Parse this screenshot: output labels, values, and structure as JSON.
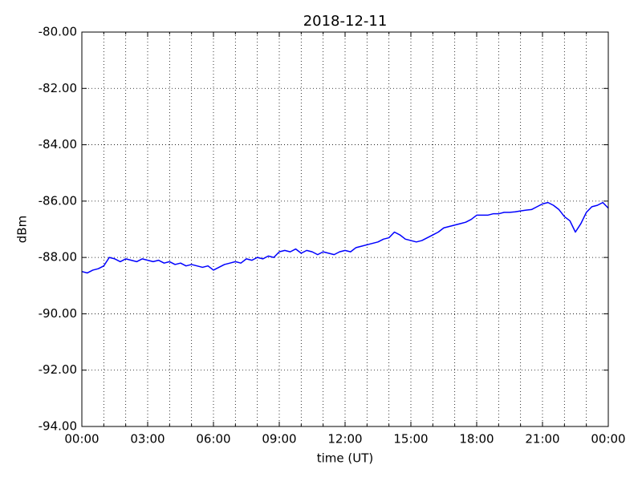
{
  "chart_data": {
    "type": "line",
    "title": "2018-12-11",
    "x_label": "time (UT)",
    "y_label": "dBm",
    "x": [
      0,
      0.25,
      0.5,
      0.75,
      1,
      1.25,
      1.5,
      1.75,
      2,
      2.25,
      2.5,
      2.75,
      3,
      3.25,
      3.5,
      3.75,
      4,
      4.25,
      4.5,
      4.75,
      5,
      5.25,
      5.5,
      5.75,
      6,
      6.25,
      6.5,
      6.75,
      7,
      7.25,
      7.5,
      7.75,
      8,
      8.25,
      8.5,
      8.75,
      9,
      9.25,
      9.5,
      9.75,
      10,
      10.25,
      10.5,
      10.75,
      11,
      11.25,
      11.5,
      11.75,
      12,
      12.25,
      12.5,
      12.75,
      13,
      13.25,
      13.5,
      13.75,
      14,
      14.25,
      14.5,
      14.75,
      15,
      15.25,
      15.5,
      15.75,
      16,
      16.25,
      16.5,
      16.75,
      17,
      17.25,
      17.5,
      17.75,
      18,
      18.25,
      18.5,
      18.75,
      19,
      19.25,
      19.5,
      19.75,
      20,
      20.25,
      20.5,
      20.75,
      21,
      21.25,
      21.5,
      21.75,
      22,
      22.25,
      22.5,
      22.75,
      23,
      23.25,
      23.5,
      23.75,
      24
    ],
    "series": [
      {
        "color": "#0000ff",
        "values": [
          -88.5,
          -88.55,
          -88.45,
          -88.4,
          -88.3,
          -88.0,
          -88.05,
          -88.15,
          -88.05,
          -88.1,
          -88.15,
          -88.05,
          -88.1,
          -88.15,
          -88.1,
          -88.2,
          -88.15,
          -88.25,
          -88.2,
          -88.3,
          -88.25,
          -88.3,
          -88.35,
          -88.3,
          -88.45,
          -88.35,
          -88.25,
          -88.2,
          -88.15,
          -88.2,
          -88.05,
          -88.1,
          -88.0,
          -88.05,
          -87.95,
          -88.0,
          -87.8,
          -87.75,
          -87.8,
          -87.7,
          -87.85,
          -87.75,
          -87.8,
          -87.9,
          -87.8,
          -87.85,
          -87.9,
          -87.8,
          -87.75,
          -87.8,
          -87.65,
          -87.6,
          -87.55,
          -87.5,
          -87.45,
          -87.35,
          -87.3,
          -87.1,
          -87.2,
          -87.35,
          -87.4,
          -87.45,
          -87.4,
          -87.3,
          -87.2,
          -87.1,
          -86.95,
          -86.9,
          -86.85,
          -86.8,
          -86.75,
          -86.65,
          -86.5,
          -86.5,
          -86.5,
          -86.45,
          -86.45,
          -86.4,
          -86.4,
          -86.38,
          -86.35,
          -86.32,
          -86.3,
          -86.2,
          -86.1,
          -86.05,
          -86.15,
          -86.3,
          -86.55,
          -86.7,
          -87.1,
          -86.8,
          -86.4,
          -86.2,
          -86.15,
          -86.05,
          -86.25
        ]
      }
    ],
    "xlim": [
      0,
      24
    ],
    "xticks": [
      {
        "value": 0,
        "label": "00:00"
      },
      {
        "value": 3,
        "label": "03:00"
      },
      {
        "value": 6,
        "label": "06:00"
      },
      {
        "value": 9,
        "label": "09:00"
      },
      {
        "value": 12,
        "label": "12:00"
      },
      {
        "value": 15,
        "label": "15:00"
      },
      {
        "value": 18,
        "label": "18:00"
      },
      {
        "value": 21,
        "label": "21:00"
      },
      {
        "value": 24,
        "label": "00:00"
      }
    ],
    "xminorticks": [
      1,
      2,
      4,
      5,
      7,
      8,
      10,
      11,
      13,
      14,
      16,
      17,
      19,
      20,
      22,
      23
    ],
    "ylim": [
      -94,
      -80
    ],
    "yticks": [
      {
        "value": -94,
        "label": "-94.00"
      },
      {
        "value": -92,
        "label": "-92.00"
      },
      {
        "value": -90,
        "label": "-90.00"
      },
      {
        "value": -88,
        "label": "-88.00"
      },
      {
        "value": -86,
        "label": "-86.00"
      },
      {
        "value": -84,
        "label": "-84.00"
      },
      {
        "value": -82,
        "label": "-82.00"
      },
      {
        "value": -80,
        "label": "-80.00"
      }
    ],
    "grid": true
  }
}
